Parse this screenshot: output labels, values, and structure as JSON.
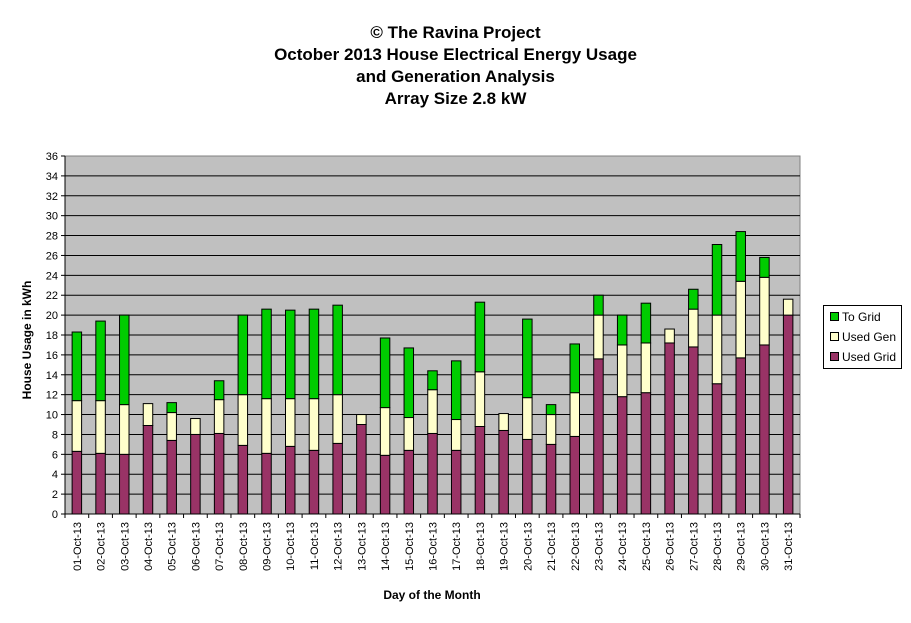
{
  "title_lines": [
    "© The Ravina Project",
    "October 2013 House Electrical Energy Usage",
    "and Generation Analysis",
    "Array Size 2.8 kW"
  ],
  "chart_data": {
    "type": "bar",
    "stacked": true,
    "title": "© The Ravina Project October 2013 House Electrical Energy Usage and Generation Analysis Array Size 2.8 kW",
    "xlabel": "Day of the Month",
    "ylabel": "House Usage in kWh",
    "ylim": [
      0,
      36
    ],
    "yticks": [
      0,
      2,
      4,
      6,
      8,
      10,
      12,
      14,
      16,
      18,
      20,
      22,
      24,
      26,
      28,
      30,
      32,
      34,
      36
    ],
    "grid": true,
    "legend_position": "right",
    "categories": [
      "01-Oct-13",
      "02-Oct-13",
      "03-Oct-13",
      "04-Oct-13",
      "05-Oct-13",
      "06-Oct-13",
      "07-Oct-13",
      "08-Oct-13",
      "09-Oct-13",
      "10-Oct-13",
      "11-Oct-13",
      "12-Oct-13",
      "13-Oct-13",
      "14-Oct-13",
      "15-Oct-13",
      "16-Oct-13",
      "17-Oct-13",
      "18-Oct-13",
      "19-Oct-13",
      "20-Oct-13",
      "21-Oct-13",
      "22-Oct-13",
      "23-Oct-13",
      "24-Oct-13",
      "25-Oct-13",
      "26-Oct-13",
      "27-Oct-13",
      "28-Oct-13",
      "29-Oct-13",
      "30-Oct-13",
      "31-Oct-13"
    ],
    "series": [
      {
        "name": "Used Grid",
        "color": "#993366",
        "values": [
          6.3,
          6.1,
          6.0,
          8.9,
          7.4,
          8.0,
          8.1,
          6.9,
          6.1,
          6.8,
          6.4,
          7.1,
          9.0,
          5.9,
          6.4,
          8.1,
          6.4,
          8.8,
          8.4,
          7.5,
          7.0,
          7.8,
          15.6,
          11.8,
          12.2,
          17.2,
          16.8,
          13.1,
          15.7,
          17.0,
          20.0
        ]
      },
      {
        "name": "Used Gen",
        "color": "#FFFFCC",
        "values": [
          5.1,
          5.3,
          5.0,
          2.2,
          2.8,
          1.6,
          3.4,
          5.1,
          5.5,
          4.8,
          5.2,
          4.9,
          1.0,
          4.8,
          3.3,
          4.4,
          3.1,
          5.5,
          1.7,
          4.2,
          3.0,
          4.4,
          4.4,
          5.2,
          5.0,
          1.4,
          3.8,
          6.9,
          7.7,
          6.8,
          1.6
        ]
      },
      {
        "name": "To Grid",
        "color": "#00CC00",
        "values": [
          6.9,
          8.0,
          9.0,
          0,
          1.0,
          0,
          1.9,
          8.0,
          9.0,
          8.9,
          9.0,
          9.0,
          0,
          7.0,
          7.0,
          1.9,
          5.9,
          7.0,
          0,
          7.9,
          1.0,
          4.9,
          2.0,
          3.0,
          4.0,
          0,
          2.0,
          7.1,
          5.0,
          2.0,
          0
        ]
      }
    ]
  },
  "legend": {
    "items": [
      {
        "label": "To Grid",
        "color": "#00CC00"
      },
      {
        "label": "Used Gen",
        "color": "#FFFFCC"
      },
      {
        "label": "Used Grid",
        "color": "#993366"
      }
    ]
  }
}
